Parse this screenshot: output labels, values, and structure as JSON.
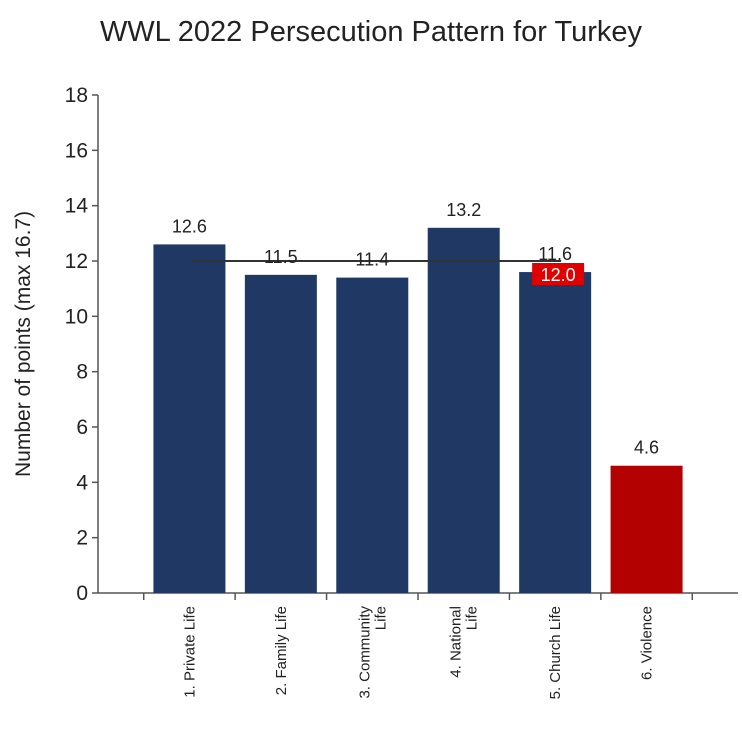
{
  "chart_data": {
    "type": "bar",
    "title": "WWL 2022 Persecution Pattern for Turkey",
    "ylabel": "Number of points (max 16.7)",
    "xlabel": "",
    "ylim": [
      0,
      18
    ],
    "yticks": [
      0,
      2,
      4,
      6,
      8,
      10,
      12,
      14,
      16,
      18
    ],
    "grid": false,
    "categories": [
      [
        "1. Private Life"
      ],
      [
        "2. Family Life"
      ],
      [
        "3. Community",
        "Life"
      ],
      [
        "4. National",
        "Life"
      ],
      [
        "5. Church Life"
      ],
      [
        "6. Violence"
      ]
    ],
    "values": [
      12.6,
      11.5,
      11.4,
      13.2,
      11.6,
      4.6
    ],
    "value_labels": [
      "12.6",
      "11.5",
      "11.4",
      "13.2",
      "11.6",
      "4.6"
    ],
    "bar_colors": [
      "#1f3864",
      "#1f3864",
      "#1f3864",
      "#1f3864",
      "#1f3864",
      "#b30000"
    ],
    "average": {
      "value": 12.0,
      "label": "12.0",
      "spans_categories": [
        0,
        4
      ],
      "line_color": "#333333",
      "label_bg": "#e00000"
    }
  }
}
